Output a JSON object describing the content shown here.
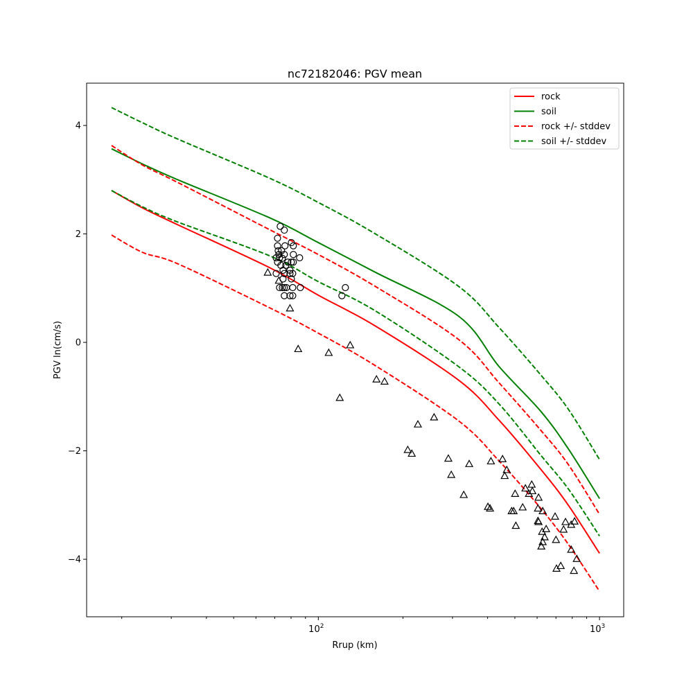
{
  "chart_data": {
    "type": "line",
    "title": "nc72182046: PGV mean",
    "xlabel": "Rrup (km)",
    "ylabel": "PGV ln(cm/s)",
    "xscale": "log",
    "xlim": [
      15.0,
      1219
    ],
    "ylim": [
      -5.06,
      4.78
    ],
    "grid": false,
    "legend_position": "top-right",
    "xticks": [
      {
        "value": 100,
        "base": "10",
        "exp": "2"
      },
      {
        "value": 1000,
        "base": "10",
        "exp": "3"
      }
    ],
    "yticks": [
      {
        "value": -4,
        "label": "−4"
      },
      {
        "value": -2,
        "label": "−2"
      },
      {
        "value": 0,
        "label": "0"
      },
      {
        "value": 2,
        "label": "2"
      },
      {
        "value": 4,
        "label": "4"
      }
    ],
    "curve_x": [
      18.4,
      23.7,
      31.6,
      67.6,
      100,
      158.5,
      316,
      440,
      618,
      774,
      1000
    ],
    "series": [
      {
        "name": "rock",
        "color": "#ff0000",
        "style": "solid",
        "legend": true,
        "values": [
          2.8,
          2.48,
          2.17,
          1.37,
          0.87,
          0.31,
          -0.7,
          -1.44,
          -2.34,
          -3.0,
          -3.89
        ]
      },
      {
        "name": "soil",
        "color": "#008000",
        "style": "solid",
        "legend": true,
        "values": [
          3.57,
          3.29,
          3.0,
          2.29,
          1.84,
          1.3,
          0.48,
          -0.45,
          -1.27,
          -1.96,
          -2.88
        ]
      },
      {
        "name": "rock +/- stddev",
        "color": "#ff0000",
        "style": "dashed",
        "legend": true,
        "values": [
          3.63,
          3.27,
          2.95,
          2.07,
          1.62,
          1.04,
          0.05,
          -0.75,
          -1.62,
          -2.25,
          -3.17
        ]
      },
      {
        "name": "rock +/- stddev",
        "color": "#ff0000",
        "style": "dashed",
        "legend": false,
        "values": [
          1.98,
          1.66,
          1.45,
          0.63,
          0.17,
          -0.42,
          -1.45,
          -2.19,
          -3.06,
          -3.72,
          -4.59
        ]
      },
      {
        "name": "soil +/- stddev",
        "color": "#008000",
        "style": "dashed",
        "legend": true,
        "values": [
          4.33,
          4.05,
          3.75,
          3.02,
          2.58,
          2.01,
          1.03,
          0.27,
          -0.6,
          -1.23,
          -2.16
        ]
      },
      {
        "name": "soil +/- stddev",
        "color": "#008000",
        "style": "dashed",
        "legend": false,
        "values": [
          2.8,
          2.5,
          2.22,
          1.59,
          1.12,
          0.59,
          -0.45,
          -1.14,
          -2.08,
          -2.7,
          -3.57
        ]
      }
    ],
    "legend": [
      "rock",
      "soil",
      "rock +/- stddev",
      "soil +/- stddev"
    ],
    "circle_points": [
      [
        73.2,
        2.14
      ],
      [
        75.7,
        2.07
      ],
      [
        71.6,
        1.92
      ],
      [
        80.2,
        1.84
      ],
      [
        71.6,
        1.78
      ],
      [
        76.1,
        1.78
      ],
      [
        81.5,
        1.78
      ],
      [
        72.0,
        1.69
      ],
      [
        74.0,
        1.69
      ],
      [
        81.5,
        1.62
      ],
      [
        75.7,
        1.62
      ],
      [
        72.4,
        1.62
      ],
      [
        85.8,
        1.56
      ],
      [
        70.8,
        1.56
      ],
      [
        72.8,
        1.56
      ],
      [
        74.5,
        1.55
      ],
      [
        71.6,
        1.48
      ],
      [
        77.9,
        1.48
      ],
      [
        80.2,
        1.48
      ],
      [
        81.5,
        1.48
      ],
      [
        73.6,
        1.42
      ],
      [
        76.6,
        1.42
      ],
      [
        74.9,
        1.33
      ],
      [
        79.3,
        1.33
      ],
      [
        70.8,
        1.27
      ],
      [
        75.7,
        1.27
      ],
      [
        79.3,
        1.27
      ],
      [
        81.1,
        1.27
      ],
      [
        74.9,
        1.17
      ],
      [
        80.2,
        1.17
      ],
      [
        72.8,
        1.01
      ],
      [
        74.5,
        1.01
      ],
      [
        75.7,
        1.01
      ],
      [
        77.0,
        1.01
      ],
      [
        81.1,
        1.01
      ],
      [
        86.3,
        1.01
      ],
      [
        75.7,
        0.86
      ],
      [
        79.3,
        0.86
      ],
      [
        81.1,
        0.86
      ],
      [
        124.8,
        1.01
      ],
      [
        121.3,
        0.86
      ]
    ],
    "triangle_points": [
      [
        66.1,
        1.29
      ],
      [
        72.4,
        1.14
      ],
      [
        79.3,
        0.63
      ],
      [
        84.8,
        -0.12
      ],
      [
        108.9,
        -0.19
      ],
      [
        129.8,
        -0.05
      ],
      [
        119.2,
        -1.02
      ],
      [
        161,
        -0.68
      ],
      [
        172,
        -0.72
      ],
      [
        208,
        -1.98
      ],
      [
        215,
        -2.05
      ],
      [
        226,
        -1.51
      ],
      [
        258,
        -1.38
      ],
      [
        290,
        -2.14
      ],
      [
        297,
        -2.44
      ],
      [
        329,
        -2.81
      ],
      [
        344,
        -2.24
      ],
      [
        401,
        -3.03
      ],
      [
        408,
        -3.06
      ],
      [
        411,
        -2.19
      ],
      [
        452,
        -2.15
      ],
      [
        468,
        -2.35
      ],
      [
        460,
        -2.46
      ],
      [
        501,
        -2.79
      ],
      [
        545,
        -2.69
      ],
      [
        574,
        -2.62
      ],
      [
        577,
        -2.74
      ],
      [
        561,
        -2.79
      ],
      [
        607,
        -2.86
      ],
      [
        533,
        -3.04
      ],
      [
        487,
        -3.11
      ],
      [
        495,
        -3.11
      ],
      [
        604,
        -3.06
      ],
      [
        628,
        -3.11
      ],
      [
        504,
        -3.38
      ],
      [
        604,
        -3.29
      ],
      [
        607,
        -3.31
      ],
      [
        695,
        -3.21
      ],
      [
        625,
        -3.49
      ],
      [
        646,
        -3.44
      ],
      [
        638,
        -3.59
      ],
      [
        628,
        -3.68
      ],
      [
        621,
        -3.76
      ],
      [
        700,
        -3.64
      ],
      [
        757,
        -3.31
      ],
      [
        815,
        -3.3
      ],
      [
        793,
        -3.36
      ],
      [
        745,
        -3.45
      ],
      [
        793,
        -3.82
      ],
      [
        830,
        -3.99
      ],
      [
        703,
        -4.17
      ],
      [
        728,
        -4.12
      ],
      [
        811,
        -4.21
      ]
    ]
  }
}
